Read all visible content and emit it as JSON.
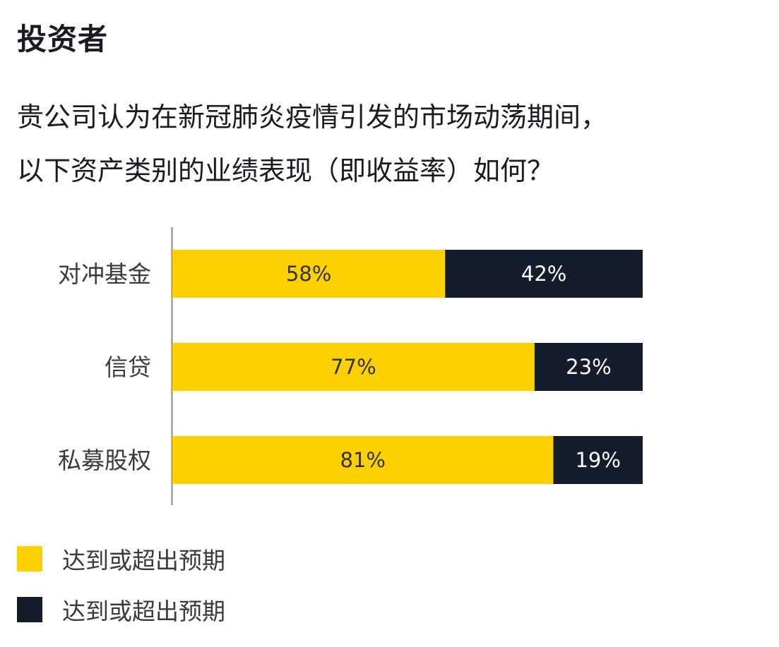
{
  "header": {
    "title": "投资者",
    "subtitle_line1": "贵公司认为在新冠肺炎疫情引发的市场动荡期间，",
    "subtitle_line2": "以下资产类别的业绩表现（即收益率）如何？"
  },
  "colors": {
    "series_1": "#FDD000",
    "series_2": "#151C2C",
    "text_on_light": "#333333",
    "text_on_dark": "#FFFFFF",
    "axis": "#888888"
  },
  "chart_data": {
    "type": "bar",
    "orientation": "horizontal",
    "stacked": true,
    "categories": [
      "对冲基金",
      "信贷",
      "私募股权"
    ],
    "series": [
      {
        "name": "达到或超出预期",
        "values": [
          58,
          77,
          81
        ],
        "labels": [
          "58%",
          "77%",
          "81%"
        ]
      },
      {
        "name": "达到或超出预期",
        "values": [
          42,
          23,
          19
        ],
        "labels": [
          "42%",
          "23%",
          "19%"
        ]
      }
    ],
    "xlim": [
      0,
      100
    ],
    "unit": "%",
    "grid": false,
    "legend_position": "bottom-left"
  },
  "legend": {
    "items": [
      {
        "label": "达到或超出预期"
      },
      {
        "label": "达到或超出预期"
      }
    ]
  }
}
